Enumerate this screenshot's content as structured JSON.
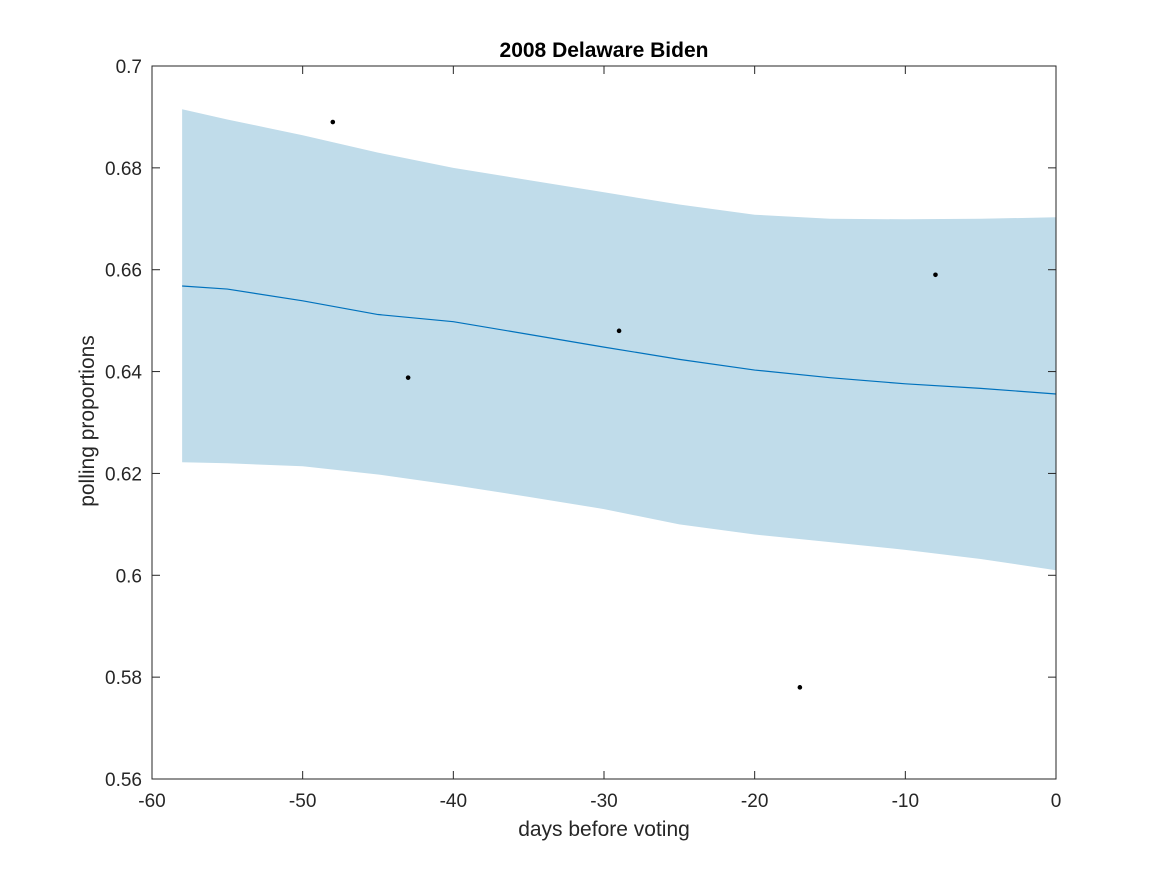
{
  "chart_data": {
    "type": "line",
    "title": "2008 Delaware Biden",
    "xlabel": "days before voting",
    "ylabel": "polling proportions",
    "xlim": [
      -60,
      0
    ],
    "ylim": [
      0.56,
      0.7
    ],
    "x_ticks": [
      -60,
      -50,
      -40,
      -30,
      -20,
      -10,
      0
    ],
    "x_tick_labels": [
      "-60",
      "-50",
      "-40",
      "-30",
      "-20",
      "-10",
      "0"
    ],
    "y_ticks": [
      0.56,
      0.58,
      0.6,
      0.62,
      0.64,
      0.66,
      0.68,
      0.7
    ],
    "y_tick_labels": [
      "0.56",
      "0.58",
      "0.6",
      "0.62",
      "0.64",
      "0.66",
      "0.68",
      "0.7"
    ],
    "grid": false,
    "colors": {
      "band": "#c0dcea",
      "line": "#0072bd",
      "points": "#000000",
      "axes": "#262626"
    },
    "series": [
      {
        "type": "line",
        "x": [
          -58,
          -55,
          -50,
          -45,
          -40,
          -35,
          -30,
          -25,
          -20,
          -15,
          -10,
          -5,
          0
        ],
        "y": [
          0.6568,
          0.6562,
          0.6539,
          0.6512,
          0.6498,
          0.6473,
          0.6448,
          0.6424,
          0.6403,
          0.6388,
          0.6376,
          0.6367,
          0.6356
        ]
      },
      {
        "type": "area",
        "x": [
          -58,
          -55,
          -50,
          -45,
          -40,
          -35,
          -30,
          -25,
          -20,
          -15,
          -10,
          -5,
          0
        ],
        "upper": [
          0.6915,
          0.6895,
          0.6864,
          0.683,
          0.68,
          0.6776,
          0.6752,
          0.6728,
          0.6708,
          0.67,
          0.6699,
          0.67,
          0.6703
        ],
        "lower": [
          0.6222,
          0.622,
          0.6214,
          0.6198,
          0.6177,
          0.6154,
          0.613,
          0.61,
          0.608,
          0.6065,
          0.605,
          0.6032,
          0.601
        ]
      },
      {
        "type": "scatter",
        "x": [
          -48,
          -43,
          -29,
          -17,
          -8
        ],
        "y": [
          0.689,
          0.6388,
          0.648,
          0.578,
          0.659
        ]
      }
    ]
  }
}
